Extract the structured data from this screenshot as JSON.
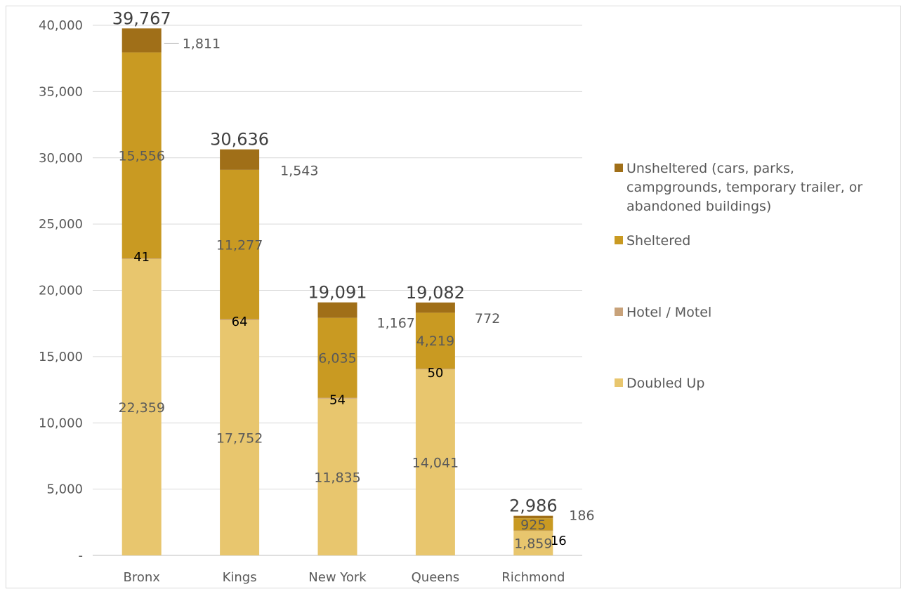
{
  "chart_data": {
    "type": "bar",
    "stacked": true,
    "categories": [
      "Bronx",
      "Kings",
      "New York",
      "Queens",
      "Richmond"
    ],
    "series": [
      {
        "name": "Doubled Up",
        "color": "#e8c66e",
        "values": [
          22359,
          17752,
          11835,
          14041,
          1859
        ]
      },
      {
        "name": "Hotel / Motel",
        "color": "#c8a27a",
        "values": [
          41,
          64,
          54,
          50,
          16
        ]
      },
      {
        "name": "Sheltered",
        "color": "#c99a22",
        "values": [
          15556,
          11277,
          6035,
          4219,
          925
        ]
      },
      {
        "name": "Unsheltered (cars, parks, campgrounds, temporary trailer, or abandoned buildings)",
        "color": "#a06f18",
        "values": [
          1811,
          1543,
          1167,
          772,
          186
        ]
      }
    ],
    "totals": [
      39767,
      30636,
      19091,
      19082,
      2986
    ],
    "ylim": [
      0,
      40000
    ],
    "yticks": [
      {
        "value": 0,
        "label": "-"
      },
      {
        "value": 5000,
        "label": "5,000"
      },
      {
        "value": 10000,
        "label": "10,000"
      },
      {
        "value": 15000,
        "label": "15,000"
      },
      {
        "value": 20000,
        "label": "20,000"
      },
      {
        "value": 25000,
        "label": "25,000"
      },
      {
        "value": 30000,
        "label": "30,000"
      },
      {
        "value": 35000,
        "label": "35,000"
      },
      {
        "value": 40000,
        "label": "40,000"
      }
    ],
    "legend": {
      "position": "right",
      "entries": [
        {
          "lines": [
            "Unsheltered (cars, parks,",
            "campgrounds, temporary trailer, or",
            "abandoned buildings)"
          ],
          "color": "#a06f18"
        },
        {
          "lines": [
            "Sheltered"
          ],
          "color": "#c99a22"
        },
        {
          "lines": [
            "Hotel / Motel"
          ],
          "color": "#c8a27a"
        },
        {
          "lines": [
            "Doubled Up"
          ],
          "color": "#e8c66e"
        }
      ]
    },
    "grid": true,
    "title": "",
    "xlabel": "",
    "ylabel": ""
  }
}
